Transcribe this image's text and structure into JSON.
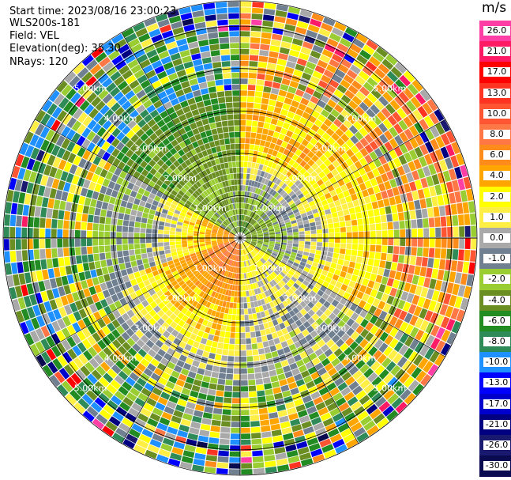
{
  "header": {
    "start_time": "Start time: 2023/08/16 23:00:23",
    "instrument": "WLS200s-181",
    "field": "Field: VEL",
    "elevation": "Elevation(deg): 35.30",
    "nrays": "NRays: 120"
  },
  "colorbar": {
    "unit": "m/s",
    "labels": [
      "26.0",
      "21.0",
      "17.0",
      "13.0",
      "10.0",
      "8.0",
      "6.0",
      "4.0",
      "2.0",
      "1.0",
      "0.0",
      "-1.0",
      "-2.0",
      "-4.0",
      "-6.0",
      "-8.0",
      "-10.0",
      "-13.0",
      "-17.0",
      "-21.0",
      "-26.0",
      "-30.0"
    ],
    "colors": [
      "#ff3fa6",
      "#ff1a66",
      "#ff0000",
      "#ff3322",
      "#ff5533",
      "#ff7744",
      "#ff8c1a",
      "#ffa500",
      "#ffff00",
      "#ffee44",
      "#a9a9a9",
      "#708090",
      "#9acd32",
      "#6b8e23",
      "#228b22",
      "#2e8b57",
      "#1e90ff",
      "#0000ff",
      "#0000cd",
      "#000080",
      "#191970",
      "#0a0a50"
    ]
  },
  "chart_data": {
    "type": "heatmap",
    "projection": "polar PPI",
    "field": "VEL",
    "unit": "m/s",
    "nrays": 120,
    "elevation_deg": 35.3,
    "range_ring_labels": [
      "1.00km",
      "2.00km",
      "3.00km",
      "4.00km",
      "5.00km"
    ],
    "range_rings_km": [
      1,
      2,
      3,
      4,
      5
    ],
    "max_range_km": 5.6,
    "vmin": -30.0,
    "vmax": 26.0,
    "sectors": [
      {
        "from_deg": 0,
        "to_deg": 45,
        "near_value": -6.0,
        "mid_value": 4.0,
        "far_value": 2.0
      },
      {
        "from_deg": 45,
        "to_deg": 120,
        "near_value": -4.0,
        "mid_value": 2.0,
        "far_value": 4.0
      },
      {
        "from_deg": 120,
        "to_deg": 180,
        "near_value": 2.0,
        "mid_value": 0.0,
        "far_value": -2.0
      },
      {
        "from_deg": 180,
        "to_deg": 250,
        "near_value": 8.0,
        "mid_value": 2.0,
        "far_value": -6.0
      },
      {
        "from_deg": 250,
        "to_deg": 300,
        "near_value": 6.0,
        "mid_value": -1.0,
        "far_value": -4.0
      },
      {
        "from_deg": 300,
        "to_deg": 360,
        "near_value": -2.0,
        "mid_value": -4.0,
        "far_value": -6.0
      }
    ]
  }
}
